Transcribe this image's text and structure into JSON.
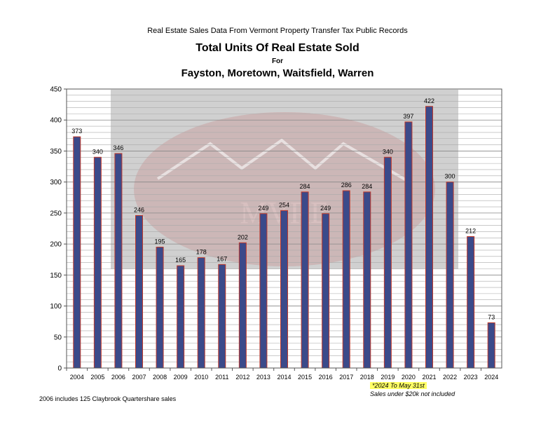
{
  "header": {
    "supertitle": "Real Estate Sales Data From Vermont Property Transfer Tax Public Records",
    "title": "Total Units Of Real Estate Sold",
    "for_label": "For",
    "subtitle": "Fayston, Moretown, Waitsfield, Warren"
  },
  "notes": {
    "claybrook": "2006 includes 125 Claybrook Quartershare sales",
    "ytd": "*2024 To May 31st",
    "exclusion": "Sales under $20k not included"
  },
  "watermark": {
    "text": "MVRE"
  },
  "colors": {
    "bar_fill": "#3b4a8a",
    "bar_stroke": "#c0392b",
    "grid": "#aaaaaa",
    "watermark_panel": "#d0d0d0"
  },
  "chart_data": {
    "type": "bar",
    "title": "Total Units Of Real Estate Sold",
    "categories": [
      "2004",
      "2005",
      "2006",
      "2007",
      "2008",
      "2009",
      "2010",
      "2011",
      "2012",
      "2013",
      "2014",
      "2015",
      "2016",
      "2017",
      "2018",
      "2019",
      "2020",
      "2021",
      "2022",
      "2023",
      "2024"
    ],
    "values": [
      373,
      340,
      346,
      246,
      195,
      165,
      178,
      167,
      202,
      249,
      254,
      284,
      249,
      286,
      284,
      340,
      397,
      422,
      300,
      212,
      73
    ],
    "ylim": [
      0,
      450
    ],
    "yticks": [
      0,
      50,
      100,
      150,
      200,
      250,
      300,
      350,
      400,
      450
    ],
    "grid": true,
    "data_labels": true,
    "legend": "none"
  }
}
